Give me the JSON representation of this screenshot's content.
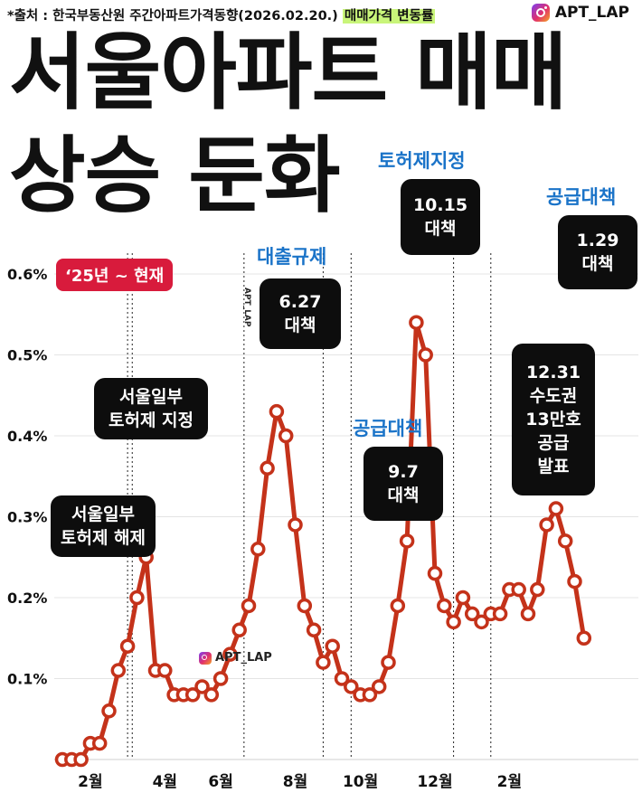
{
  "header": {
    "source_prefix": "*출처 : 한국부동산원 주간아파트가격동향(2026.02.20.) ",
    "source_highlight": "매매가격 변동률",
    "brand": "APT_LAP",
    "title_line1": "서울아파트 매매",
    "title_line2": "상승 둔화"
  },
  "watermark": "APT_LAP",
  "period_badge": "‘25년 ~ 현재",
  "annotations": [
    {
      "id": "a1",
      "label": "서울일부\n토허제 해제",
      "week_index": 7
    },
    {
      "id": "a2",
      "label": "서울일부\n토허제 지정",
      "week_index": 7.5
    },
    {
      "id": "a3",
      "label": "6.27\n대책",
      "heading": "대출규제",
      "week_index": 19.5
    },
    {
      "id": "a4",
      "label": "9.7\n대책",
      "heading": "공급대책",
      "week_index": 28
    },
    {
      "id": "a5",
      "label": "10.15\n대책",
      "heading": "토허제지정",
      "week_index": 31
    },
    {
      "id": "a6",
      "label": "12.31\n수도권\n13만호\n공급\n발표",
      "week_index": 42
    },
    {
      "id": "a7",
      "label": "1.29\n대책",
      "heading": "공급대책",
      "week_index": 46
    }
  ],
  "chart_data": {
    "type": "line",
    "title": "서울아파트 매매 상승 둔화",
    "subtitle": "매매가격 변동률",
    "ylabel": "",
    "xlabel": "",
    "ylim": [
      0,
      0.6
    ],
    "y_ticks": [
      "0.1%",
      "0.2%",
      "0.3%",
      "0.4%",
      "0.5%",
      "0.6%"
    ],
    "y_tick_values": [
      0.1,
      0.2,
      0.3,
      0.4,
      0.5,
      0.6
    ],
    "x_tick_labels": [
      {
        "label": "2월",
        "week_index": 3
      },
      {
        "label": "4월",
        "week_index": 11
      },
      {
        "label": "6월",
        "week_index": 17
      },
      {
        "label": "8월",
        "week_index": 25
      },
      {
        "label": "10월",
        "week_index": 32
      },
      {
        "label": "12월",
        "week_index": 40
      },
      {
        "label": "2월",
        "week_index": 48
      }
    ],
    "series": [
      {
        "name": "서울 아파트 매매가격 변동률(%)",
        "values": [
          0,
          0,
          0,
          0.02,
          0.02,
          0.06,
          0.11,
          0.14,
          0.2,
          0.25,
          0.11,
          0.11,
          0.08,
          0.08,
          0.08,
          0.09,
          0.08,
          0.1,
          0.13,
          0.16,
          0.19,
          0.26,
          0.36,
          0.43,
          0.4,
          0.29,
          0.19,
          0.16,
          0.12,
          0.14,
          0.1,
          0.09,
          0.08,
          0.08,
          0.09,
          0.12,
          0.19,
          0.27,
          0.54,
          0.5,
          0.23,
          0.19,
          0.17,
          0.2,
          0.18,
          0.17,
          0.18,
          0.18,
          0.21,
          0.21,
          0.18,
          0.21,
          0.29,
          0.31,
          0.27,
          0.22,
          0.15
        ]
      }
    ],
    "grid": true
  }
}
